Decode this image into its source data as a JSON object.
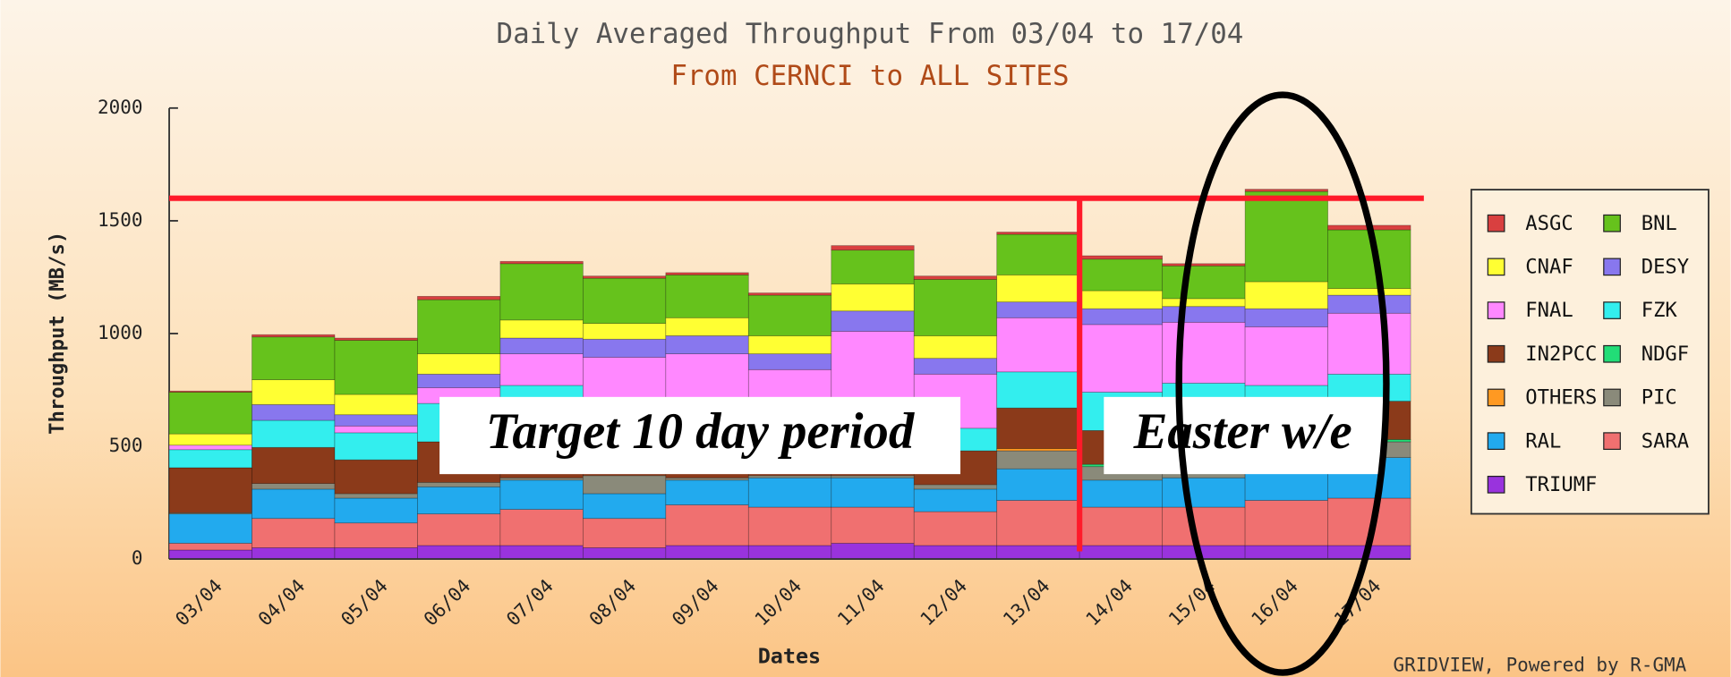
{
  "chart_data": {
    "type": "stacked_bar",
    "title": "Daily Averaged Throughput From 03/04 to 17/04",
    "subtitle": "From CERNCI to ALL SITES",
    "x_label": "Dates",
    "y_label": "Throughput (MB/s)",
    "footer": "GRIDVIEW, Powered by R-GMA",
    "annotations": [
      "Target 10 day period",
      "Easter w/e"
    ],
    "hline": 1600,
    "categories": [
      "03/04",
      "04/04",
      "05/04",
      "06/04",
      "07/04",
      "08/04",
      "09/04",
      "10/04",
      "11/04",
      "12/04",
      "13/04",
      "14/04",
      "15/04",
      "16/04",
      "17/04"
    ],
    "ylim": [
      0,
      2000
    ],
    "yticks": [
      0,
      500,
      1000,
      1500,
      2000
    ],
    "series": [
      {
        "name": "ASGC",
        "color": "#d94040",
        "values": [
          5,
          10,
          10,
          15,
          10,
          10,
          10,
          10,
          20,
          15,
          10,
          15,
          10,
          10,
          20
        ]
      },
      {
        "name": "BNL",
        "color": "#66c21c",
        "values": [
          185,
          190,
          240,
          240,
          250,
          200,
          190,
          180,
          150,
          250,
          180,
          140,
          145,
          400,
          260
        ]
      },
      {
        "name": "CNAF",
        "color": "#ffff33",
        "values": [
          50,
          110,
          90,
          90,
          80,
          70,
          80,
          80,
          120,
          100,
          120,
          80,
          35,
          120,
          30
        ]
      },
      {
        "name": "DESY",
        "color": "#8877ee",
        "values": [
          0,
          70,
          50,
          60,
          70,
          80,
          80,
          70,
          90,
          70,
          70,
          70,
          70,
          80,
          80
        ]
      },
      {
        "name": "FNAL",
        "color": "#ff88ff",
        "values": [
          20,
          0,
          30,
          70,
          140,
          255,
          250,
          170,
          390,
          240,
          240,
          300,
          270,
          260,
          270
        ]
      },
      {
        "name": "FZK",
        "color": "#33eeee",
        "values": [
          80,
          120,
          120,
          170,
          240,
          120,
          150,
          150,
          150,
          100,
          160,
          170,
          220,
          160,
          120
        ]
      },
      {
        "name": "IN2PCC",
        "color": "#8b3a1a",
        "values": [
          200,
          160,
          150,
          180,
          170,
          150,
          150,
          150,
          100,
          150,
          180,
          150,
          140,
          180,
          170
        ]
      },
      {
        "name": "NDGF",
        "color": "#22dd77",
        "values": [
          0,
          0,
          0,
          0,
          0,
          0,
          0,
          0,
          0,
          0,
          0,
          10,
          10,
          0,
          10
        ]
      },
      {
        "name": "OTHERS",
        "color": "#ff9922",
        "values": [
          0,
          0,
          0,
          0,
          0,
          0,
          0,
          0,
          0,
          0,
          10,
          0,
          0,
          0,
          0
        ]
      },
      {
        "name": "PIC",
        "color": "#8a8a7a",
        "values": [
          5,
          25,
          20,
          20,
          10,
          80,
          10,
          10,
          10,
          20,
          80,
          60,
          50,
          20,
          70
        ]
      },
      {
        "name": "RAL",
        "color": "#22aaee",
        "values": [
          130,
          130,
          110,
          120,
          130,
          110,
          110,
          130,
          130,
          100,
          140,
          120,
          130,
          150,
          180
        ]
      },
      {
        "name": "SARA",
        "color": "#f07070",
        "values": [
          30,
          130,
          110,
          140,
          160,
          130,
          180,
          170,
          160,
          150,
          200,
          170,
          170,
          200,
          210
        ]
      },
      {
        "name": "TRIUMF",
        "color": "#9933dd",
        "values": [
          40,
          50,
          50,
          60,
          60,
          50,
          60,
          60,
          70,
          60,
          60,
          60,
          60,
          60,
          60
        ]
      }
    ]
  }
}
